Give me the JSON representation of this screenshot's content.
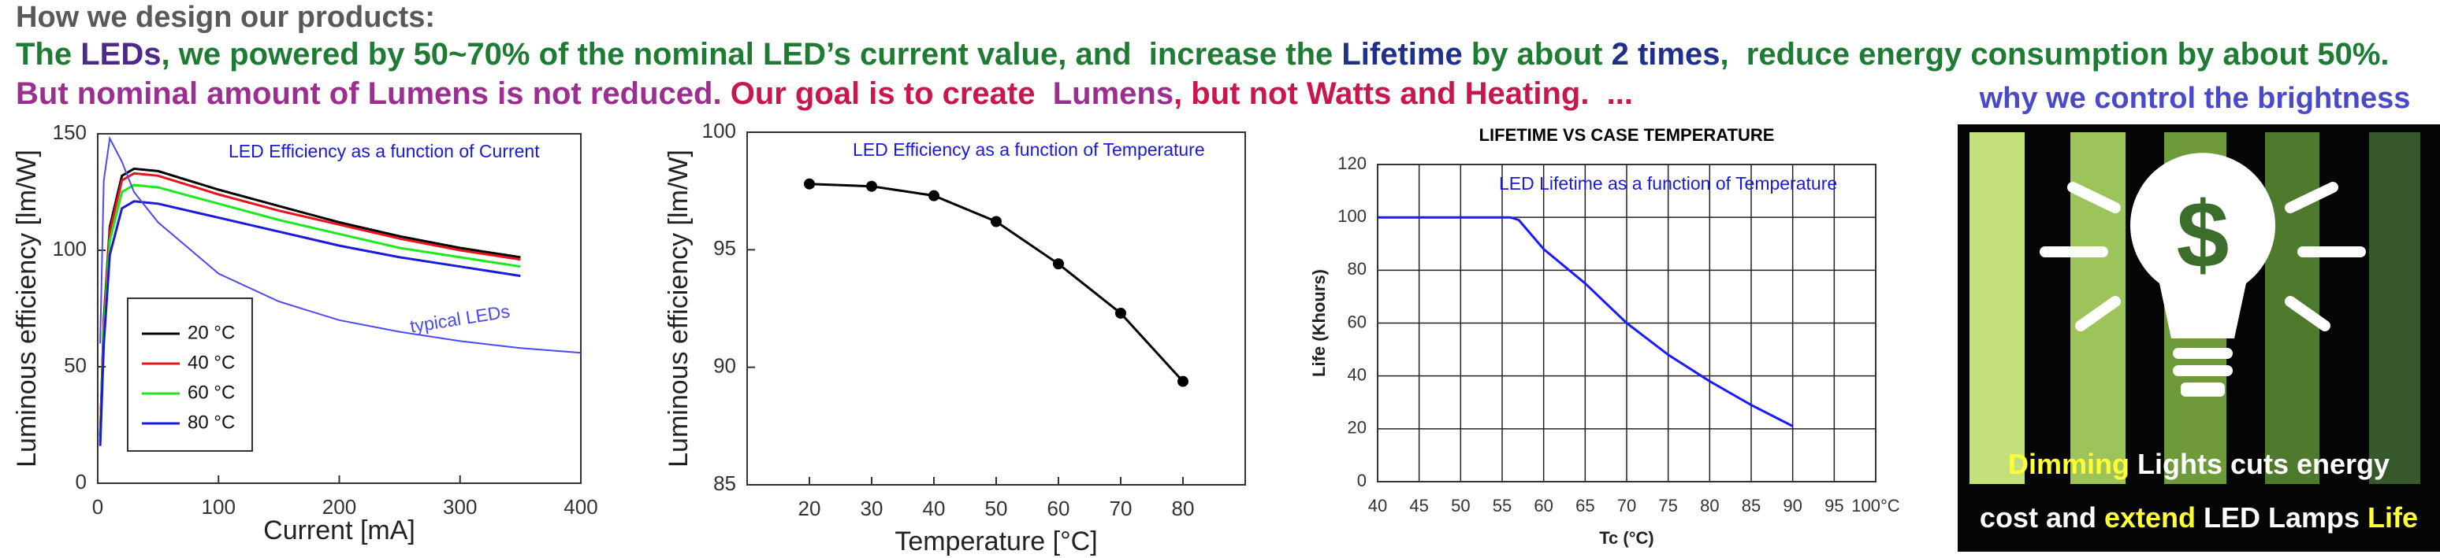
{
  "header": {
    "title": "How we design our products:",
    "line1": [
      {
        "text": "The ",
        "color": "#1e7b34"
      },
      {
        "text": "LEDs",
        "color": "#4b2a8c"
      },
      {
        "text": ", we powered by 50~70% of the nominal LED’s current value, and  increase the ",
        "color": "#1e7b34"
      },
      {
        "text": "Lifetime",
        "color": "#1f2f8c"
      },
      {
        "text": " by about ",
        "color": "#1e7b34"
      },
      {
        "text": "2 times",
        "color": "#1f2f8c"
      },
      {
        "text": ",  reduce energy consumption by about 50%.",
        "color": "#1e7b34"
      }
    ],
    "line2": [
      {
        "text": "But nominal amount of Lumens is not reduced. ",
        "color": "#9a2f8f"
      },
      {
        "text": "Our goal is to create  ",
        "color": "#c8174f"
      },
      {
        "text": "Lumens",
        "color": "#9a2f8f"
      },
      {
        "text": ", but not Watts and Heating.  ...",
        "color": "#c8174f"
      }
    ]
  },
  "chart_data": [
    {
      "type": "line",
      "annotation": "LED Efficiency as a function of Current",
      "xlabel": "Current [mA]",
      "ylabel": "Luminous efficiency [lm/W]",
      "x": [
        2,
        5,
        10,
        20,
        30,
        50,
        100,
        150,
        200,
        250,
        300,
        350,
        400
      ],
      "series": [
        {
          "name": "20 °C",
          "color": "#000000",
          "values": [
            20,
            70,
            110,
            132,
            135,
            134,
            126,
            119,
            112,
            106,
            101,
            97,
            null
          ]
        },
        {
          "name": "40 °C",
          "color": "#e8141b",
          "values": [
            20,
            68,
            108,
            130,
            133,
            132,
            124,
            117,
            111,
            105,
            100,
            96,
            null
          ]
        },
        {
          "name": "60 °C",
          "color": "#1ee81e",
          "values": [
            18,
            65,
            104,
            125,
            128,
            127,
            120,
            113,
            107,
            101,
            97,
            93,
            null
          ]
        },
        {
          "name": "80 °C",
          "color": "#1a1ad8",
          "values": [
            16,
            60,
            98,
            118,
            121,
            120,
            114,
            108,
            102,
            97,
            93,
            89,
            null
          ]
        }
      ],
      "reference_curve": {
        "name": "typical LEDs",
        "color": "#4a4af0",
        "values": [
          60,
          130,
          148,
          138,
          125,
          112,
          90,
          78,
          70,
          65,
          61,
          58,
          56
        ]
      },
      "xlim": [
        0,
        400
      ],
      "xticks": [
        0,
        100,
        200,
        300,
        400
      ],
      "ylim": [
        0,
        150
      ],
      "yticks": [
        0,
        50,
        100,
        150
      ],
      "grid": false,
      "legend": "lower left"
    },
    {
      "type": "line",
      "markers": true,
      "annotation": "LED Efficiency as a function of Temperature",
      "xlabel": "Temperature [°C]",
      "ylabel": "Luminous efficiency [lm/W]",
      "x": [
        20,
        30,
        40,
        50,
        60,
        70,
        80
      ],
      "series": [
        {
          "color": "#000000",
          "values": [
            97.8,
            97.7,
            97.3,
            96.2,
            94.4,
            92.3,
            89.4
          ]
        }
      ],
      "xlim": [
        10,
        90
      ],
      "xticks": [
        20,
        30,
        40,
        50,
        60,
        70,
        80
      ],
      "ylim": [
        85,
        100
      ],
      "yticks": [
        85,
        90,
        95,
        100
      ],
      "grid": false
    },
    {
      "type": "line",
      "title": "LIFETIME VS CASE TEMPERATURE",
      "annotation": "LED Lifetime as a function of Temperature",
      "xlabel": "Tc (°C)",
      "ylabel": "Life (Khours)",
      "x": [
        40,
        56,
        57,
        60,
        65,
        70,
        75,
        80,
        85,
        90
      ],
      "series": [
        {
          "color": "#1a1aff",
          "values": [
            100,
            100,
            99,
            88,
            75,
            60,
            48,
            38,
            29,
            21
          ]
        }
      ],
      "xlim": [
        40,
        100
      ],
      "xticks": [
        40,
        45,
        50,
        55,
        60,
        65,
        70,
        75,
        80,
        85,
        90,
        95,
        {
          "value": 100,
          "label": "100°C"
        }
      ],
      "ylim": [
        0,
        120
      ],
      "yticks": [
        0,
        20,
        40,
        60,
        80,
        100,
        120
      ],
      "grid": true
    }
  ],
  "image_panel": {
    "title": "why we control the brightness",
    "symbol": "$",
    "caption_line1": [
      {
        "text": "Dimming",
        "color": "#ffff33"
      },
      {
        "text": " Lights cuts energy",
        "color": "#ffffff"
      }
    ],
    "caption_line2": [
      {
        "text": "cost and ",
        "color": "#ffffff"
      },
      {
        "text": "extend",
        "color": "#ffff33"
      },
      {
        "text": " LED Lamps ",
        "color": "#ffffff"
      },
      {
        "text": "Life",
        "color": "#ffff33"
      }
    ]
  }
}
